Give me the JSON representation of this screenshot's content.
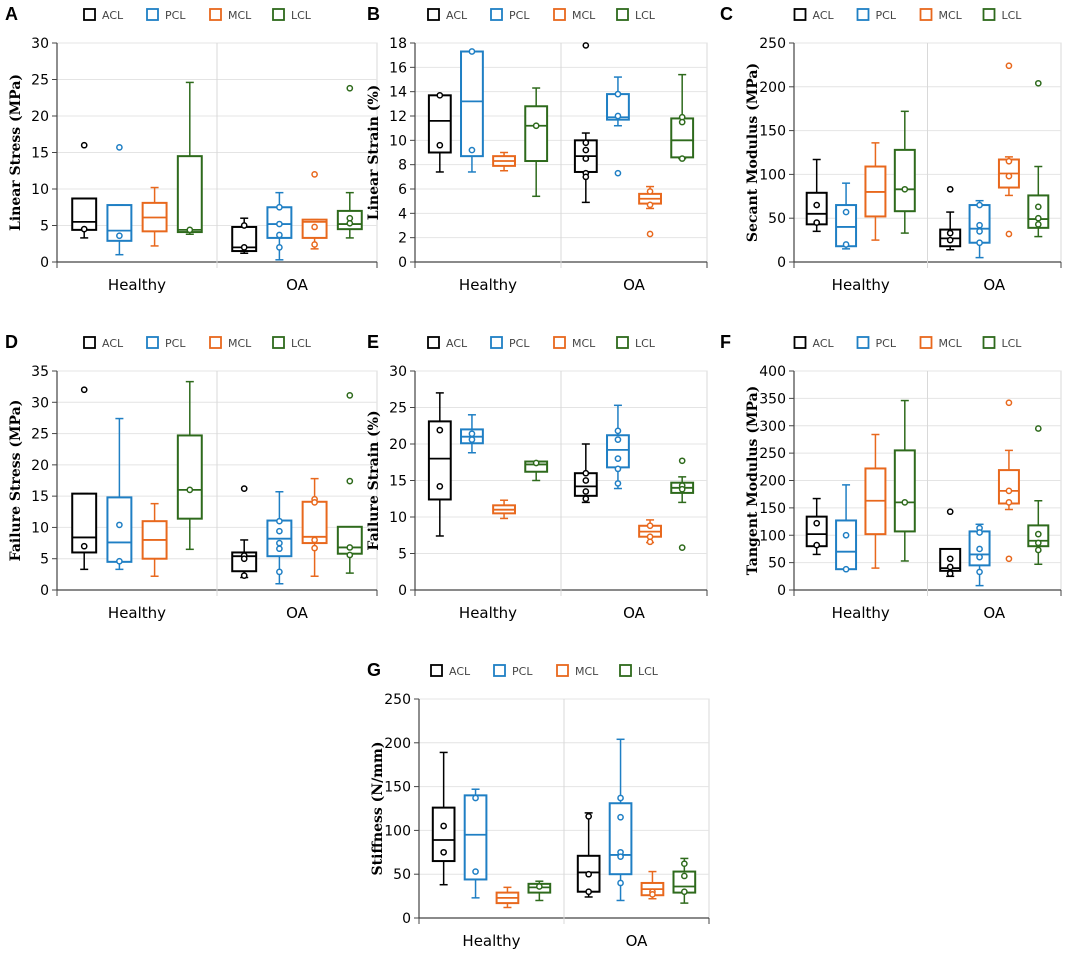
{
  "colors": {
    "ACL": "#000000",
    "PCL": "#1f7fc4",
    "MCL": "#e8681d",
    "LCL": "#2e6a1c"
  },
  "chart_data": [
    {
      "id": "A",
      "type": "box",
      "ylabel": "Linear Stress (MPa)",
      "ylim": [
        0,
        30
      ],
      "yticks": [
        0,
        5,
        10,
        15,
        20,
        25,
        30
      ],
      "categories": [
        "Healthy",
        "OA"
      ],
      "legend": [
        "ACL",
        "PCL",
        "MCL",
        "LCL"
      ],
      "series": [
        {
          "name": "ACL",
          "boxes": [
            {
              "min": 3.3,
              "q1": 4.4,
              "median": 5.5,
              "q3": 8.7,
              "max": 8.7,
              "points": [
                16.0,
                4.5
              ]
            },
            {
              "min": 1.2,
              "q1": 1.5,
              "median": 2.0,
              "q3": 4.8,
              "max": 6.0,
              "points": [
                2.0,
                5.0
              ]
            }
          ]
        },
        {
          "name": "PCL",
          "boxes": [
            {
              "min": 1.0,
              "q1": 2.9,
              "median": 4.3,
              "q3": 7.8,
              "max": 7.8,
              "points": [
                15.7,
                3.6
              ]
            },
            {
              "min": 0.3,
              "q1": 3.3,
              "median": 5.2,
              "q3": 7.5,
              "max": 9.5,
              "points": [
                7.5,
                5.2,
                3.7,
                2.0
              ]
            }
          ]
        },
        {
          "name": "MCL",
          "boxes": [
            {
              "min": 2.2,
              "q1": 4.2,
              "median": 6.1,
              "q3": 8.1,
              "max": 10.2,
              "points": []
            },
            {
              "min": 1.8,
              "q1": 3.3,
              "median": 5.5,
              "q3": 5.8,
              "max": 5.8,
              "points": [
                12.0,
                4.8,
                2.4
              ]
            }
          ]
        },
        {
          "name": "LCL",
          "boxes": [
            {
              "min": 3.8,
              "q1": 4.1,
              "median": 4.4,
              "q3": 14.5,
              "max": 24.6,
              "points": [
                4.4
              ]
            },
            {
              "min": 3.3,
              "q1": 4.5,
              "median": 5.2,
              "q3": 7.0,
              "max": 9.5,
              "points": [
                23.8,
                6.0,
                5.3
              ]
            }
          ]
        }
      ]
    },
    {
      "id": "B",
      "type": "box",
      "ylabel": "Linear Strain (%)",
      "ylim": [
        0,
        18
      ],
      "yticks": [
        0,
        2,
        4,
        6,
        8,
        10,
        12,
        14,
        16,
        18
      ],
      "categories": [
        "Healthy",
        "OA"
      ],
      "legend": [
        "ACL",
        "PCL",
        "MCL",
        "LCL"
      ],
      "series": [
        {
          "name": "ACL",
          "boxes": [
            {
              "min": 7.4,
              "q1": 9.0,
              "median": 11.6,
              "q3": 13.7,
              "max": 13.7,
              "points": [
                13.7,
                9.6
              ]
            },
            {
              "min": 4.9,
              "q1": 7.4,
              "median": 8.7,
              "q3": 10.0,
              "max": 10.6,
              "points": [
                17.8,
                9.8,
                9.2,
                8.5,
                7.3,
                7.0
              ]
            }
          ]
        },
        {
          "name": "PCL",
          "boxes": [
            {
              "min": 7.4,
              "q1": 8.7,
              "median": 13.2,
              "q3": 17.3,
              "max": 17.3,
              "points": [
                17.3,
                9.2
              ]
            },
            {
              "min": 11.2,
              "q1": 11.7,
              "median": 11.9,
              "q3": 13.8,
              "max": 15.2,
              "points": [
                13.8,
                12.0,
                7.3
              ]
            }
          ]
        },
        {
          "name": "MCL",
          "boxes": [
            {
              "min": 7.5,
              "q1": 7.9,
              "median": 8.3,
              "q3": 8.7,
              "max": 9.0,
              "points": []
            },
            {
              "min": 4.4,
              "q1": 4.8,
              "median": 5.2,
              "q3": 5.6,
              "max": 6.2,
              "points": [
                5.8,
                4.7,
                2.3
              ]
            }
          ]
        },
        {
          "name": "LCL",
          "boxes": [
            {
              "min": 5.4,
              "q1": 8.3,
              "median": 11.2,
              "q3": 12.8,
              "max": 14.3,
              "points": [
                11.2
              ]
            },
            {
              "min": 8.5,
              "q1": 8.6,
              "median": 10.0,
              "q3": 11.8,
              "max": 15.4,
              "points": [
                11.9,
                11.5,
                8.5
              ]
            }
          ]
        }
      ]
    },
    {
      "id": "C",
      "type": "box",
      "ylabel": "Secant Modulus (MPa)",
      "ylim": [
        0,
        250
      ],
      "yticks": [
        0,
        50,
        100,
        150,
        200,
        250
      ],
      "categories": [
        "Healthy",
        "OA"
      ],
      "legend": [
        "ACL",
        "PCL",
        "MCL",
        "LCL"
      ],
      "series": [
        {
          "name": "ACL",
          "boxes": [
            {
              "min": 35,
              "q1": 43,
              "median": 55,
              "q3": 79,
              "max": 117,
              "points": [
                65,
                45
              ]
            },
            {
              "min": 14,
              "q1": 18,
              "median": 27,
              "q3": 37,
              "max": 57,
              "points": [
                83,
                33,
                25
              ]
            }
          ]
        },
        {
          "name": "PCL",
          "boxes": [
            {
              "min": 15,
              "q1": 18,
              "median": 40,
              "q3": 65,
              "max": 90,
              "points": [
                57,
                20
              ]
            },
            {
              "min": 5,
              "q1": 22,
              "median": 38,
              "q3": 65,
              "max": 70,
              "points": [
                65,
                42,
                35,
                22
              ]
            }
          ]
        },
        {
          "name": "MCL",
          "boxes": [
            {
              "min": 25,
              "q1": 52,
              "median": 80,
              "q3": 109,
              "max": 136,
              "points": []
            },
            {
              "min": 76,
              "q1": 85,
              "median": 101,
              "q3": 117,
              "max": 120,
              "points": [
                224,
                115,
                98,
                32
              ]
            }
          ]
        },
        {
          "name": "LCL",
          "boxes": [
            {
              "min": 33,
              "q1": 58,
              "median": 83,
              "q3": 128,
              "max": 172,
              "points": [
                83
              ]
            },
            {
              "min": 29,
              "q1": 39,
              "median": 49,
              "q3": 76,
              "max": 109,
              "points": [
                204,
                63,
                50,
                43
              ]
            }
          ]
        }
      ]
    },
    {
      "id": "D",
      "type": "box",
      "ylabel": "Failure Stress (MPa)",
      "ylim": [
        0,
        35
      ],
      "yticks": [
        0,
        5,
        10,
        15,
        20,
        25,
        30,
        35
      ],
      "categories": [
        "Healthy",
        "OA"
      ],
      "legend": [
        "ACL",
        "PCL",
        "MCL",
        "LCL"
      ],
      "series": [
        {
          "name": "ACL",
          "boxes": [
            {
              "min": 3.3,
              "q1": 6.0,
              "median": 8.4,
              "q3": 15.4,
              "max": 15.4,
              "points": [
                32.0,
                7.0
              ]
            },
            {
              "min": 2.0,
              "q1": 3.0,
              "median": 5.4,
              "q3": 6.0,
              "max": 8.0,
              "points": [
                16.2,
                5.5,
                5.0,
                2.3
              ]
            }
          ]
        },
        {
          "name": "PCL",
          "boxes": [
            {
              "min": 3.3,
              "q1": 4.5,
              "median": 7.6,
              "q3": 14.8,
              "max": 27.4,
              "points": [
                10.4,
                4.6
              ]
            },
            {
              "min": 1.0,
              "q1": 5.4,
              "median": 8.2,
              "q3": 11.1,
              "max": 15.7,
              "points": [
                11.0,
                9.4,
                7.5,
                6.6,
                2.9
              ]
            }
          ]
        },
        {
          "name": "MCL",
          "boxes": [
            {
              "min": 2.2,
              "q1": 5.0,
              "median": 8.0,
              "q3": 11.0,
              "max": 13.8,
              "points": []
            },
            {
              "min": 2.2,
              "q1": 7.5,
              "median": 8.5,
              "q3": 14.1,
              "max": 17.8,
              "points": [
                14.5,
                14.0,
                8.0,
                6.7
              ]
            }
          ]
        },
        {
          "name": "LCL",
          "boxes": [
            {
              "min": 6.5,
              "q1": 11.4,
              "median": 16.0,
              "q3": 24.7,
              "max": 33.3,
              "points": [
                16.0
              ]
            },
            {
              "min": 2.7,
              "q1": 5.8,
              "median": 6.8,
              "q3": 10.1,
              "max": 10.1,
              "points": [
                31.1,
                17.4,
                6.8,
                5.6
              ]
            }
          ]
        }
      ]
    },
    {
      "id": "E",
      "type": "box",
      "ylabel": "Failure Strain (%)",
      "ylim": [
        0,
        30
      ],
      "yticks": [
        0,
        5,
        10,
        15,
        20,
        25,
        30
      ],
      "categories": [
        "Healthy",
        "OA"
      ],
      "legend": [
        "ACL",
        "PCL",
        "MCL",
        "LCL"
      ],
      "series": [
        {
          "name": "ACL",
          "boxes": [
            {
              "min": 7.4,
              "q1": 12.4,
              "median": 18.0,
              "q3": 23.1,
              "max": 27.0,
              "points": [
                21.9,
                14.2
              ]
            },
            {
              "min": 12.0,
              "q1": 12.9,
              "median": 14.2,
              "q3": 16.0,
              "max": 20.0,
              "points": [
                16.0,
                15.0,
                13.5,
                12.5
              ]
            }
          ]
        },
        {
          "name": "PCL",
          "boxes": [
            {
              "min": 18.8,
              "q1": 20.1,
              "median": 21.0,
              "q3": 22.0,
              "max": 24.0,
              "points": [
                21.4,
                20.6
              ]
            },
            {
              "min": 13.9,
              "q1": 16.8,
              "median": 19.2,
              "q3": 21.2,
              "max": 25.3,
              "points": [
                21.8,
                20.6,
                18.0,
                16.6,
                14.6
              ]
            }
          ]
        },
        {
          "name": "MCL",
          "boxes": [
            {
              "min": 9.8,
              "q1": 10.5,
              "median": 11.0,
              "q3": 11.6,
              "max": 12.3,
              "points": []
            },
            {
              "min": 6.5,
              "q1": 7.3,
              "median": 8.0,
              "q3": 8.8,
              "max": 9.6,
              "points": [
                8.8,
                7.3,
                6.6
              ]
            }
          ]
        },
        {
          "name": "LCL",
          "boxes": [
            {
              "min": 15.0,
              "q1": 16.2,
              "median": 17.2,
              "q3": 17.6,
              "max": 17.6,
              "points": [
                17.4
              ]
            },
            {
              "min": 12.0,
              "q1": 13.3,
              "median": 14.0,
              "q3": 14.7,
              "max": 15.5,
              "points": [
                17.7,
                14.3,
                13.8,
                5.8
              ]
            }
          ]
        }
      ]
    },
    {
      "id": "F",
      "type": "box",
      "ylabel": "Tangent Modulus (MPa)",
      "ylim": [
        0,
        400
      ],
      "yticks": [
        0,
        50,
        100,
        150,
        200,
        250,
        300,
        350,
        400
      ],
      "categories": [
        "Healthy",
        "OA"
      ],
      "legend": [
        "ACL",
        "PCL",
        "MCL",
        "LCL"
      ],
      "series": [
        {
          "name": "ACL",
          "boxes": [
            {
              "min": 65,
              "q1": 80,
              "median": 102,
              "q3": 134,
              "max": 167,
              "points": [
                122,
                82
              ]
            },
            {
              "min": 25,
              "q1": 35,
              "median": 40,
              "q3": 75,
              "max": 75,
              "points": [
                143,
                57,
                42,
                30
              ]
            }
          ]
        },
        {
          "name": "PCL",
          "boxes": [
            {
              "min": 38,
              "q1": 38,
              "median": 70,
              "q3": 127,
              "max": 192,
              "points": [
                100,
                38
              ]
            },
            {
              "min": 8,
              "q1": 45,
              "median": 65,
              "q3": 107,
              "max": 120,
              "points": [
                113,
                105,
                75,
                60,
                33
              ]
            }
          ]
        },
        {
          "name": "MCL",
          "boxes": [
            {
              "min": 40,
              "q1": 102,
              "median": 163,
              "q3": 222,
              "max": 284,
              "points": []
            },
            {
              "min": 147,
              "q1": 158,
              "median": 181,
              "q3": 219,
              "max": 255,
              "points": [
                342,
                181,
                160,
                57
              ]
            }
          ]
        },
        {
          "name": "LCL",
          "boxes": [
            {
              "min": 53,
              "q1": 107,
              "median": 160,
              "q3": 255,
              "max": 346,
              "points": [
                160
              ]
            },
            {
              "min": 47,
              "q1": 80,
              "median": 90,
              "q3": 118,
              "max": 163,
              "points": [
                295,
                102,
                86,
                73
              ]
            }
          ]
        }
      ]
    },
    {
      "id": "G",
      "type": "box",
      "ylabel": "Stiffness (N/mm)",
      "ylim": [
        0,
        250
      ],
      "yticks": [
        0,
        50,
        100,
        150,
        200,
        250
      ],
      "categories": [
        "Healthy",
        "OA"
      ],
      "legend": [
        "ACL",
        "PCL",
        "MCL",
        "LCL"
      ],
      "series": [
        {
          "name": "ACL",
          "boxes": [
            {
              "min": 38,
              "q1": 65,
              "median": 89,
              "q3": 126,
              "max": 189,
              "points": [
                105,
                75
              ]
            },
            {
              "min": 24,
              "q1": 30,
              "median": 52,
              "q3": 71,
              "max": 120,
              "points": [
                116,
                50,
                30
              ]
            }
          ]
        },
        {
          "name": "PCL",
          "boxes": [
            {
              "min": 23,
              "q1": 44,
              "median": 95,
              "q3": 140,
              "max": 147,
              "points": [
                137,
                53
              ]
            },
            {
              "min": 20,
              "q1": 50,
              "median": 72,
              "q3": 131,
              "max": 204,
              "points": [
                137,
                115,
                75,
                70,
                40
              ]
            }
          ]
        },
        {
          "name": "MCL",
          "boxes": [
            {
              "min": 12,
              "q1": 17,
              "median": 23,
              "q3": 29,
              "max": 35,
              "points": []
            },
            {
              "min": 22,
              "q1": 26,
              "median": 33,
              "q3": 40,
              "max": 53,
              "points": [
                30,
                27
              ]
            }
          ]
        },
        {
          "name": "LCL",
          "boxes": [
            {
              "min": 20,
              "q1": 29,
              "median": 35,
              "q3": 39,
              "max": 42,
              "points": [
                36
              ]
            },
            {
              "min": 17,
              "q1": 29,
              "median": 36,
              "q3": 53,
              "max": 68,
              "points": [
                62,
                48,
                30
              ]
            }
          ]
        }
      ]
    }
  ]
}
